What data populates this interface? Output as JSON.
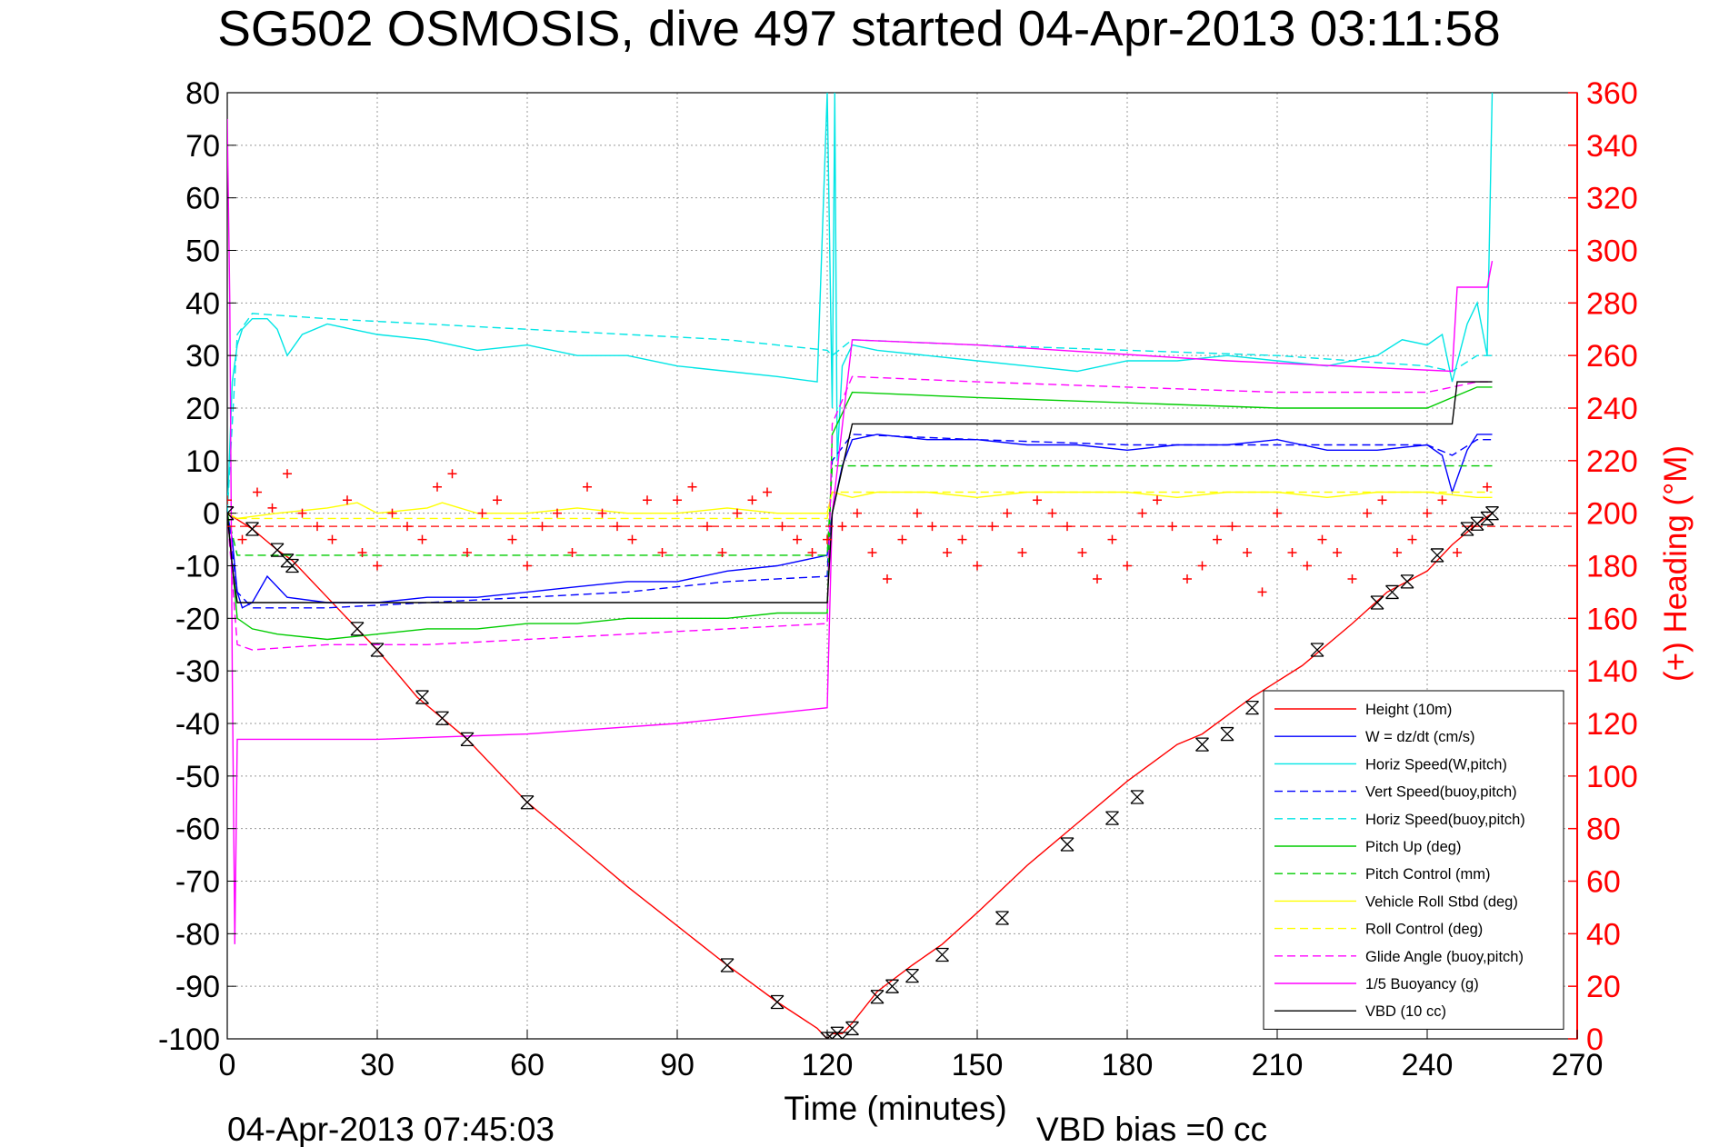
{
  "chart_data": {
    "type": "line",
    "title": "SG502 OSMOSIS, dive 497 started 04-Apr-2013 03:11:58",
    "xlabel": "Time (minutes)",
    "ylabel": "",
    "y2label": "(+) Heading (°M)",
    "footer_left": "04-Apr-2013 07:45:03",
    "footer_right": "VBD bias =0 cc",
    "xlim": [
      0,
      270
    ],
    "ylim": [
      -100,
      80
    ],
    "y2lim": [
      0,
      360
    ],
    "xticks": [
      0,
      30,
      60,
      90,
      120,
      150,
      180,
      210,
      240,
      270
    ],
    "yticks": [
      80,
      70,
      60,
      50,
      40,
      30,
      20,
      10,
      0,
      -10,
      -20,
      -30,
      -40,
      -50,
      -60,
      -70,
      -80,
      -90,
      -100
    ],
    "y2ticks": [
      360,
      340,
      320,
      300,
      280,
      260,
      240,
      220,
      200,
      180,
      160,
      140,
      120,
      100,
      80,
      60,
      40,
      20,
      0
    ],
    "grid": true,
    "legend_position": "bottom-right",
    "series": [
      {
        "name": "Height (10m)",
        "color": "#ff0000",
        "style": "solid",
        "x": [
          0,
          5,
          10,
          13,
          20,
          26,
          30,
          38,
          43,
          48,
          60,
          70,
          80,
          100,
          110,
          118,
          120,
          121,
          123,
          125,
          130,
          137,
          143,
          150,
          160,
          170,
          180,
          190,
          195,
          205,
          215,
          225,
          232,
          240,
          245,
          250,
          253
        ],
        "y": [
          0,
          -3,
          -7,
          -9,
          -16,
          -22,
          -26,
          -35,
          -39,
          -43,
          -55,
          -63,
          -71,
          -86,
          -93,
          -98,
          -100,
          -99,
          -99,
          -97,
          -91,
          -86,
          -82,
          -76,
          -67,
          -59,
          -51,
          -44,
          -42,
          -35,
          -29,
          -21,
          -15,
          -11,
          -6,
          -2,
          0
        ]
      },
      {
        "name": "W = dz/dt (cm/s)",
        "color": "#0000ff",
        "style": "solid",
        "x": [
          0,
          1,
          2,
          3,
          5,
          8,
          12,
          20,
          30,
          40,
          50,
          60,
          70,
          80,
          90,
          100,
          110,
          120,
          121,
          123,
          125,
          130,
          140,
          150,
          160,
          170,
          180,
          190,
          200,
          210,
          220,
          230,
          240,
          243,
          245,
          248,
          250,
          253
        ],
        "y": [
          0,
          -5,
          -15,
          -18,
          -17,
          -12,
          -16,
          -17,
          -17,
          -16,
          -16,
          -15,
          -14,
          -13,
          -13,
          -11,
          -10,
          -8,
          0,
          9,
          14,
          15,
          14,
          14,
          13,
          13,
          12,
          13,
          13,
          14,
          12,
          12,
          13,
          11,
          4,
          12,
          15,
          15
        ]
      },
      {
        "name": "Horiz Speed(W,pitch)",
        "color": "#00e5e5",
        "style": "solid",
        "x": [
          0,
          1,
          2,
          3,
          5,
          8,
          10,
          12,
          15,
          20,
          25,
          30,
          40,
          50,
          60,
          70,
          80,
          90,
          100,
          110,
          118,
          120,
          121,
          121.5,
          122,
          123,
          125,
          130,
          140,
          150,
          160,
          170,
          180,
          190,
          200,
          210,
          220,
          230,
          235,
          240,
          243,
          245,
          248,
          250,
          252,
          253
        ],
        "y": [
          0,
          25,
          32,
          35,
          37,
          37,
          35,
          30,
          34,
          36,
          35,
          34,
          33,
          31,
          32,
          30,
          30,
          28,
          27,
          26,
          25,
          80,
          20,
          80,
          10,
          28,
          32,
          31,
          30,
          29,
          28,
          27,
          29,
          29,
          30,
          29,
          28,
          30,
          33,
          32,
          34,
          25,
          36,
          40,
          30,
          80
        ]
      },
      {
        "name": "Vert Speed(buoy,pitch)",
        "color": "#0000ff",
        "style": "dashed",
        "x": [
          0,
          2,
          5,
          20,
          40,
          60,
          80,
          100,
          120,
          121,
          125,
          150,
          180,
          210,
          240,
          245,
          250,
          253
        ],
        "y": [
          0,
          -15,
          -18,
          -18,
          -17,
          -16,
          -15,
          -13,
          -12,
          10,
          15,
          14,
          13,
          13,
          13,
          11,
          14,
          14
        ]
      },
      {
        "name": "Horiz Speed(buoy,pitch)",
        "color": "#00e5e5",
        "style": "dashed",
        "x": [
          0,
          2,
          5,
          20,
          40,
          60,
          80,
          100,
          120,
          121,
          125,
          150,
          180,
          210,
          240,
          245,
          250,
          253
        ],
        "y": [
          0,
          34,
          38,
          37,
          36,
          35,
          34,
          33,
          31,
          30,
          33,
          32,
          31,
          30,
          28,
          27,
          30,
          30
        ]
      },
      {
        "name": "Pitch Up (deg)",
        "color": "#00cc00",
        "style": "solid",
        "x": [
          0,
          2,
          5,
          10,
          20,
          30,
          40,
          50,
          60,
          70,
          80,
          90,
          100,
          110,
          120,
          121,
          125,
          150,
          180,
          210,
          240,
          245,
          250,
          253
        ],
        "y": [
          0,
          -20,
          -22,
          -23,
          -24,
          -23,
          -22,
          -22,
          -21,
          -21,
          -20,
          -20,
          -20,
          -19,
          -19,
          15,
          23,
          22,
          21,
          20,
          20,
          22,
          24,
          24
        ]
      },
      {
        "name": "Pitch Control (mm)",
        "color": "#00cc00",
        "style": "dashed",
        "x": [
          0,
          2,
          5,
          120,
          121,
          125,
          245,
          253
        ],
        "y": [
          0,
          -8,
          -8,
          -8,
          9,
          9,
          9,
          9
        ]
      },
      {
        "name": "Vehicle Roll Stbd (deg)",
        "color": "#ffff00",
        "style": "solid",
        "x": [
          0,
          2,
          10,
          20,
          26,
          30,
          40,
          43,
          50,
          60,
          70,
          80,
          90,
          100,
          110,
          120,
          121,
          125,
          130,
          140,
          150,
          160,
          170,
          180,
          190,
          200,
          210,
          220,
          230,
          240,
          250,
          253
        ],
        "y": [
          0,
          -1,
          0,
          1,
          2,
          0,
          1,
          2,
          0,
          0,
          1,
          0,
          0,
          1,
          0,
          0,
          4,
          3,
          4,
          4,
          3,
          4,
          4,
          4,
          3,
          4,
          4,
          3,
          4,
          4,
          3,
          3
        ]
      },
      {
        "name": "Roll Control (deg)",
        "color": "#ffff00",
        "style": "dashed",
        "x": [
          0,
          2,
          120,
          121,
          253
        ],
        "y": [
          0,
          -1,
          -1,
          4,
          4
        ]
      },
      {
        "name": "Glide Angle (buoy,pitch)",
        "color": "#ff00ff",
        "style": "dashed",
        "x": [
          0,
          2,
          5,
          20,
          40,
          60,
          80,
          100,
          120,
          121,
          125,
          150,
          180,
          210,
          240,
          245,
          250,
          253
        ],
        "y": [
          0,
          -25,
          -26,
          -25,
          -25,
          -24,
          -23,
          -22,
          -21,
          17,
          26,
          25,
          24,
          23,
          23,
          24,
          25,
          25
        ]
      },
      {
        "name": "1/5 Buoyancy (g)",
        "color": "#ff00ff",
        "style": "solid",
        "x": [
          0,
          0.5,
          1,
          1.5,
          2,
          3,
          30,
          60,
          90,
          120,
          121,
          125,
          150,
          200,
          245,
          246,
          252,
          253
        ],
        "y": [
          75,
          40,
          -30,
          -82,
          -43,
          -43,
          -43,
          -42,
          -40,
          -37,
          0,
          33,
          32,
          29,
          27,
          43,
          43,
          48
        ]
      },
      {
        "name": "VBD (10 cc)",
        "color": "#000000",
        "style": "solid",
        "x": [
          0,
          1,
          2,
          3,
          120,
          121,
          125,
          245,
          246,
          253
        ],
        "y": [
          0,
          -10,
          -17,
          -17,
          -17,
          0,
          17,
          17,
          25,
          25
        ]
      }
    ],
    "heading_series": {
      "name": "Heading",
      "color": "#ff0000",
      "axis": "right",
      "marker": "+",
      "x": [
        0,
        3,
        6,
        9,
        12,
        15,
        18,
        21,
        24,
        27,
        30,
        33,
        36,
        39,
        42,
        45,
        48,
        51,
        54,
        57,
        60,
        63,
        66,
        69,
        72,
        75,
        78,
        81,
        84,
        87,
        90,
        93,
        96,
        99,
        102,
        105,
        108,
        111,
        114,
        117,
        120,
        123,
        126,
        129,
        132,
        135,
        138,
        141,
        144,
        147,
        150,
        153,
        156,
        159,
        162,
        165,
        168,
        171,
        174,
        177,
        180,
        183,
        186,
        189,
        192,
        195,
        198,
        201,
        204,
        207,
        210,
        213,
        216,
        219,
        222,
        225,
        228,
        231,
        234,
        237,
        240,
        243,
        246,
        249,
        252
      ],
      "y": [
        205,
        190,
        208,
        202,
        215,
        200,
        195,
        190,
        205,
        185,
        180,
        200,
        195,
        190,
        210,
        215,
        185,
        200,
        205,
        190,
        180,
        195,
        200,
        185,
        210,
        200,
        195,
        190,
        205,
        185,
        205,
        210,
        195,
        185,
        200,
        205,
        208,
        195,
        190,
        185,
        190,
        195,
        200,
        185,
        175,
        190,
        200,
        195,
        185,
        190,
        180,
        195,
        200,
        185,
        205,
        200,
        195,
        185,
        175,
        190,
        180,
        200,
        205,
        195,
        175,
        180,
        190,
        195,
        185,
        170,
        200,
        185,
        180,
        190,
        185,
        175,
        200,
        205,
        185,
        190,
        200,
        205,
        185,
        195,
        210
      ]
    },
    "heading_reference": {
      "color": "#ff0000",
      "style": "dashed",
      "value": 195,
      "axis": "right"
    },
    "depth_markers": {
      "color": "#000000",
      "marker": "boxed-x",
      "x": [
        0,
        5,
        10,
        12,
        13,
        26,
        30,
        39,
        43,
        48,
        60,
        100,
        110,
        120,
        121,
        122,
        123,
        125,
        130,
        133,
        137,
        143,
        155,
        168,
        177,
        182,
        195,
        200,
        205,
        218,
        230,
        233,
        236,
        242,
        248,
        250,
        252,
        253
      ],
      "y": [
        0,
        -3,
        -7,
        -9,
        -10,
        -22,
        -26,
        -35,
        -39,
        -43,
        -55,
        -86,
        -93,
        -100,
        -100,
        -99,
        -100,
        -98,
        -92,
        -90,
        -88,
        -84,
        -77,
        -63,
        -58,
        -54,
        -44,
        -42,
        -37,
        -26,
        -17,
        -15,
        -13,
        -8,
        -3,
        -2,
        -1,
        0
      ]
    }
  }
}
